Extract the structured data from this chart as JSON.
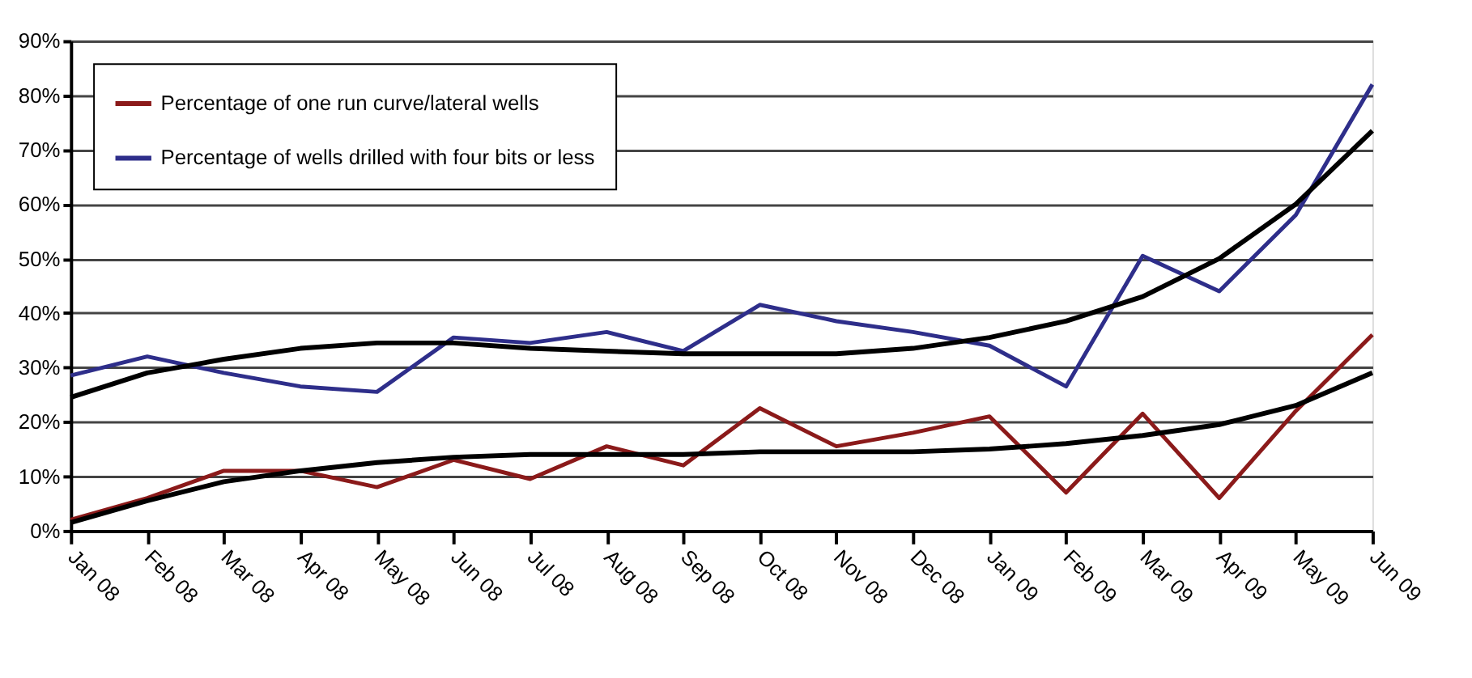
{
  "chart_data": {
    "type": "line",
    "categories": [
      "Jan 08",
      "Feb 08",
      "Mar 08",
      "Apr 08",
      "May 08",
      "Jun 08",
      "Jul 08",
      "Aug 08",
      "Sep 08",
      "Oct 08",
      "Nov 08",
      "Dec 08",
      "Jan 09",
      "Feb 09",
      "Mar 09",
      "Apr 09",
      "May 09",
      "Jun 09"
    ],
    "series": [
      {
        "name": "Percentage of one run curve/lateral wells",
        "color": "#8b1a1a",
        "values": [
          2,
          6,
          11,
          11,
          8,
          13,
          9.5,
          15.5,
          12,
          22.5,
          15.5,
          18,
          21,
          7,
          21.5,
          6,
          22,
          36
        ]
      },
      {
        "name": "Percentage of wells drilled with four bits or less",
        "color": "#2e2e8a",
        "values": [
          28.5,
          32,
          29,
          26.5,
          25.5,
          35.5,
          34.5,
          36.5,
          33,
          41.5,
          38.5,
          36.5,
          34,
          26.5,
          50.5,
          44,
          58,
          82
        ]
      },
      {
        "type": "line",
        "color": "#000000",
        "values": [
          24.5,
          29,
          31.5,
          33.5,
          34.5,
          34.5,
          33.5,
          33,
          32.5,
          32.5,
          32.5,
          33.5,
          35.5,
          38.5,
          43,
          50,
          60,
          73.5
        ]
      },
      {
        "type": "line",
        "color": "#000000",
        "values": [
          1.5,
          5.5,
          9,
          11,
          12.5,
          13.5,
          14,
          14,
          14,
          14.5,
          14.5,
          14.5,
          15,
          16,
          17.5,
          19.5,
          23,
          29
        ]
      }
    ],
    "ylim": [
      0,
      90
    ],
    "yticks": [
      {
        "value": 0,
        "label": "0%"
      },
      {
        "value": 10,
        "label": "10%"
      },
      {
        "value": 20,
        "label": "20%"
      },
      {
        "value": 30,
        "label": "30%"
      },
      {
        "value": 40,
        "label": "40%"
      },
      {
        "value": 50,
        "label": "50%"
      },
      {
        "value": 60,
        "label": "60%"
      },
      {
        "value": 70,
        "label": "70%"
      },
      {
        "value": 80,
        "label": "80%"
      },
      {
        "value": 90,
        "label": "90%"
      }
    ],
    "grid": "y",
    "legend": "top left",
    "marker": "none",
    "line_style": "solid"
  }
}
